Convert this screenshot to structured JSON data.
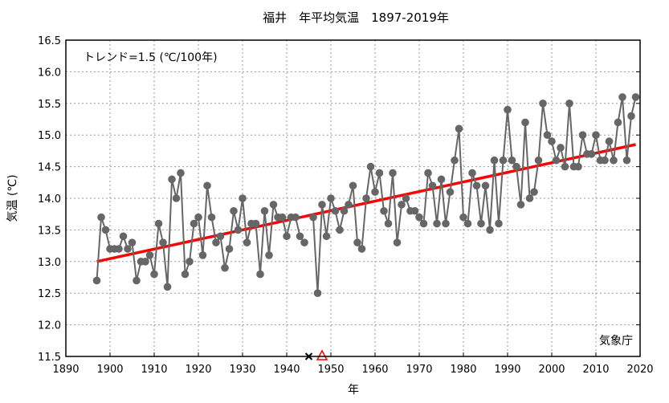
{
  "chart_data": {
    "type": "line",
    "title": "福井　年平均気温　1897-2019年",
    "xlabel": "年",
    "ylabel": "気温 (℃)",
    "xlim": [
      1890,
      2020
    ],
    "ylim": [
      11.5,
      16.5
    ],
    "xticks": [
      1890,
      1900,
      1910,
      1920,
      1930,
      1940,
      1950,
      1960,
      1970,
      1980,
      1990,
      2000,
      2010,
      2020
    ],
    "yticks": [
      "11.5",
      "12.0",
      "12.5",
      "13.0",
      "13.5",
      "14.0",
      "14.5",
      "15.0",
      "15.5",
      "16.0",
      "16.5"
    ],
    "grid": true,
    "trend_label": "トレンド=1.5 (℃/100年)",
    "source_label": "気象庁",
    "trend": {
      "x": [
        1897,
        2019
      ],
      "y": [
        13.0,
        14.85
      ],
      "color": "#ff0000"
    },
    "series": [
      {
        "name": "年平均気温",
        "color": "#666666",
        "x": [
          1897,
          1898,
          1899,
          1900,
          1901,
          1902,
          1903,
          1904,
          1905,
          1906,
          1907,
          1908,
          1909,
          1910,
          1911,
          1912,
          1913,
          1914,
          1915,
          1916,
          1917,
          1918,
          1919,
          1920,
          1921,
          1922,
          1923,
          1924,
          1925,
          1926,
          1927,
          1928,
          1929,
          1930,
          1931,
          1932,
          1933,
          1934,
          1935,
          1936,
          1937,
          1938,
          1939,
          1940,
          1941,
          1942,
          1943,
          1944,
          1945,
          1946,
          1947,
          1948,
          1949,
          1950,
          1951,
          1952,
          1953,
          1954,
          1955,
          1956,
          1957,
          1958,
          1959,
          1960,
          1961,
          1962,
          1963,
          1964,
          1965,
          1966,
          1967,
          1968,
          1969,
          1970,
          1971,
          1972,
          1973,
          1974,
          1975,
          1976,
          1977,
          1978,
          1979,
          1980,
          1981,
          1982,
          1983,
          1984,
          1985,
          1986,
          1987,
          1988,
          1989,
          1990,
          1991,
          1992,
          1993,
          1994,
          1995,
          1996,
          1997,
          1998,
          1999,
          2000,
          2001,
          2002,
          2003,
          2004,
          2005,
          2006,
          2007,
          2008,
          2009,
          2010,
          2011,
          2012,
          2013,
          2014,
          2015,
          2016,
          2017,
          2018,
          2019
        ],
        "values": [
          12.7,
          13.7,
          13.5,
          13.2,
          13.2,
          13.2,
          13.4,
          13.2,
          13.3,
          12.7,
          13.0,
          13.0,
          13.1,
          12.8,
          13.6,
          13.3,
          12.6,
          14.3,
          14.0,
          14.4,
          12.8,
          13.0,
          13.6,
          13.7,
          13.1,
          14.2,
          13.7,
          13.3,
          13.4,
          12.9,
          13.2,
          13.8,
          13.5,
          14.0,
          13.3,
          13.6,
          13.6,
          12.8,
          13.8,
          13.1,
          13.9,
          13.7,
          13.7,
          13.4,
          13.7,
          13.7,
          13.4,
          13.3,
          null,
          13.7,
          12.5,
          13.9,
          13.4,
          14.0,
          13.8,
          13.5,
          13.8,
          13.9,
          14.2,
          13.3,
          13.2,
          14.0,
          14.5,
          14.1,
          14.4,
          13.8,
          13.6,
          14.4,
          13.3,
          13.9,
          14.0,
          13.8,
          13.8,
          13.7,
          13.6,
          14.4,
          14.2,
          13.6,
          14.3,
          13.6,
          14.1,
          14.6,
          15.1,
          13.7,
          13.6,
          14.4,
          14.2,
          13.6,
          14.2,
          13.5,
          14.6,
          13.6,
          14.6,
          15.4,
          14.6,
          14.5,
          13.9,
          15.2,
          14.0,
          14.1,
          14.6,
          15.5,
          15.0,
          14.9,
          14.6,
          14.8,
          14.5,
          15.5,
          14.5,
          14.5,
          15.0,
          14.7,
          14.7,
          15.0,
          14.6,
          14.6,
          14.9,
          14.6,
          15.2,
          15.6,
          14.6,
          15.3,
          15.6
        ]
      }
    ],
    "markers": [
      {
        "type": "x",
        "year": 1945,
        "color": "#000000"
      },
      {
        "type": "triangle",
        "year": 1948,
        "color": "#ff0000"
      }
    ]
  }
}
